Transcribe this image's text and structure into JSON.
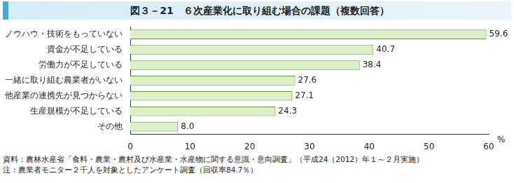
{
  "chart_data": {
    "type": "bar",
    "orientation": "horizontal",
    "title": "図３－21　６次産業化に取り組む場合の課題（複数回答）",
    "categories": [
      "ノウハウ・技術をもっていない",
      "資金が不足している",
      "労働力が不足している",
      "一緒に取り組む農業者がいない",
      "他産業の連携先が見つからない",
      "生産規模が不足している",
      "その他"
    ],
    "values": [
      59.6,
      40.7,
      38.4,
      27.6,
      27.1,
      24.3,
      8.0
    ],
    "value_labels": [
      "59.6",
      "40.7",
      "38.4",
      "27.6",
      "27.1",
      "24.3",
      "8.0"
    ],
    "data_labels": true,
    "color": "#dcefc8",
    "xlabel": "%",
    "xlim": [
      0,
      60
    ],
    "xticks": [
      0,
      10,
      20,
      30,
      40,
      50,
      60
    ],
    "grid": false,
    "annotations": [
      "資料：農林水産省「食料・農業・農村及び水産業・水産物に関する意識・意向調査」（平成24（2012）年１～２月実施）",
      "注：農業者モニター２千人を対象としたアンケート調査（回収率84.7％）"
    ]
  }
}
